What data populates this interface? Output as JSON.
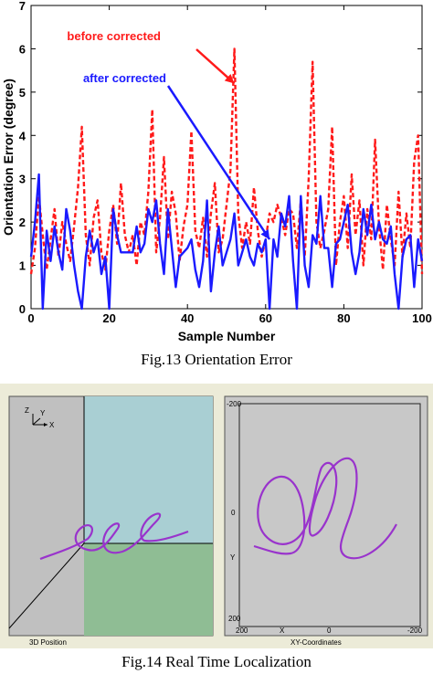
{
  "figure13": {
    "caption": "Fig.13 Orientation Error",
    "chart_data": {
      "type": "line",
      "xlabel": "Sample Number",
      "ylabel": "Orientation Error (degree)",
      "xlim": [
        0,
        100
      ],
      "ylim": [
        0,
        7
      ],
      "xticks": [
        "0",
        "20",
        "40",
        "60",
        "80",
        "100"
      ],
      "yticks": [
        "0",
        "1",
        "2",
        "3",
        "4",
        "5",
        "6",
        "7"
      ],
      "grid": false,
      "series": [
        {
          "name": "before corrected",
          "color": "#ff1a1a",
          "style": "dashed",
          "x": [
            0,
            1,
            2,
            3,
            4,
            5,
            6,
            7,
            8,
            9,
            10,
            11,
            12,
            13,
            14,
            15,
            16,
            17,
            18,
            19,
            20,
            21,
            22,
            23,
            24,
            25,
            26,
            27,
            28,
            29,
            30,
            31,
            32,
            33,
            34,
            35,
            36,
            37,
            38,
            39,
            40,
            41,
            42,
            43,
            44,
            45,
            46,
            47,
            48,
            49,
            50,
            51,
            52,
            53,
            54,
            55,
            56,
            57,
            58,
            59,
            60,
            61,
            62,
            63,
            64,
            65,
            66,
            67,
            68,
            69,
            70,
            71,
            72,
            73,
            74,
            75,
            76,
            77,
            78,
            79,
            80,
            81,
            82,
            83,
            84,
            85,
            86,
            87,
            88,
            89,
            90,
            91,
            92,
            93,
            94,
            95,
            96,
            97,
            98,
            99,
            100
          ],
          "values": [
            0.8,
            1.4,
            2.6,
            1.7,
            0.9,
            1.6,
            2.3,
            1.2,
            2.0,
            1.5,
            1.1,
            1.9,
            2.8,
            4.2,
            1.7,
            1.0,
            2.1,
            2.5,
            1.3,
            0.9,
            1.8,
            2.4,
            1.5,
            2.9,
            1.7,
            1.3,
            1.7,
            1.0,
            2.0,
            1.7,
            2.7,
            4.6,
            1.3,
            2.1,
            3.5,
            1.6,
            2.7,
            2.2,
            1.1,
            1.9,
            2.4,
            4.1,
            1.8,
            1.4,
            2.1,
            1.2,
            2.2,
            2.9,
            1.3,
            1.6,
            2.4,
            3.2,
            6.0,
            2.2,
            1.4,
            2.0,
            1.5,
            2.8,
            1.8,
            1.2,
            1.6,
            2.2,
            2.0,
            2.4,
            2.1,
            1.7,
            2.3,
            2.2,
            1.4,
            2.5,
            1.2,
            3.0,
            5.7,
            2.0,
            1.4,
            1.8,
            2.3,
            4.2,
            1.0,
            2.0,
            2.6,
            1.4,
            3.1,
            1.7,
            2.5,
            1.0,
            2.3,
            1.6,
            3.9,
            1.9,
            0.9,
            2.4,
            1.6,
            1.0,
            2.7,
            1.2,
            2.2,
            1.4,
            3.4,
            4.0,
            0.8
          ]
        },
        {
          "name": "after corrected",
          "color": "#1a1aff",
          "style": "solid",
          "x": [
            0,
            1,
            2,
            3,
            4,
            5,
            6,
            7,
            8,
            9,
            10,
            11,
            12,
            13,
            14,
            15,
            16,
            17,
            18,
            19,
            20,
            21,
            22,
            23,
            24,
            25,
            26,
            27,
            28,
            29,
            30,
            31,
            32,
            33,
            34,
            35,
            36,
            37,
            38,
            39,
            40,
            41,
            42,
            43,
            44,
            45,
            46,
            47,
            48,
            49,
            50,
            51,
            52,
            53,
            54,
            55,
            56,
            57,
            58,
            59,
            60,
            61,
            62,
            63,
            64,
            65,
            66,
            67,
            68,
            69,
            70,
            71,
            72,
            73,
            74,
            75,
            76,
            77,
            78,
            79,
            80,
            81,
            82,
            83,
            84,
            85,
            86,
            87,
            88,
            89,
            90,
            91,
            92,
            93,
            94,
            95,
            96,
            97,
            98,
            99,
            100
          ],
          "values": [
            1.2,
            2.0,
            3.1,
            0.0,
            1.8,
            1.1,
            1.9,
            1.3,
            0.9,
            2.3,
            1.8,
            1.0,
            0.4,
            0.0,
            1.2,
            1.8,
            1.3,
            1.6,
            0.8,
            1.2,
            0.0,
            2.3,
            1.7,
            1.3,
            1.3,
            1.3,
            1.3,
            1.9,
            1.3,
            1.5,
            2.3,
            2.0,
            2.5,
            1.5,
            0.8,
            2.3,
            1.4,
            0.5,
            1.2,
            1.3,
            1.4,
            1.6,
            0.9,
            0.5,
            1.1,
            2.5,
            0.4,
            1.3,
            1.9,
            1.0,
            1.3,
            1.6,
            2.2,
            1.0,
            1.3,
            1.6,
            1.2,
            1.0,
            1.5,
            1.3,
            1.6,
            0.0,
            1.6,
            1.2,
            2.2,
            1.9,
            2.6,
            1.1,
            0.0,
            2.6,
            1.0,
            0.5,
            1.7,
            1.5,
            2.6,
            1.4,
            1.4,
            0.5,
            1.5,
            1.6,
            2.0,
            2.4,
            1.3,
            0.8,
            1.3,
            2.3,
            1.7,
            2.4,
            1.6,
            2.0,
            1.6,
            1.5,
            1.9,
            0.8,
            0.0,
            1.2,
            1.6,
            1.7,
            0.5,
            1.6,
            1.1
          ]
        }
      ],
      "annotations": [
        {
          "text": "before corrected",
          "color": "#ff1a1a",
          "arrow_to": [
            52,
            5.2
          ]
        },
        {
          "text": "after corrected",
          "color": "#1a1aff",
          "arrow_to": [
            61,
            1.6
          ]
        }
      ]
    }
  },
  "figure14": {
    "caption": "Fig.14 Real Time Localization",
    "panel_3d": {
      "label": "3D Position",
      "axis_z": "Z",
      "axis_y": "Y",
      "axis_x": "X",
      "colors": {
        "panel": "#c0c0c0",
        "back_wall": "#a9cfd3",
        "floor": "#8fbd94",
        "trajectory": "#9933cc"
      }
    },
    "panel_xy": {
      "label": "XY-Coordinates",
      "top_tick": "-200",
      "mid_tick": "0",
      "bottom_tick": "200",
      "y_axis_label": "Y",
      "x_tick_left": "200",
      "x_axis_label": "X",
      "x_tick_mid": "0",
      "x_tick_right": "-200",
      "colors": {
        "panel": "#c8c8c8",
        "trajectory": "#9933cc"
      }
    }
  }
}
